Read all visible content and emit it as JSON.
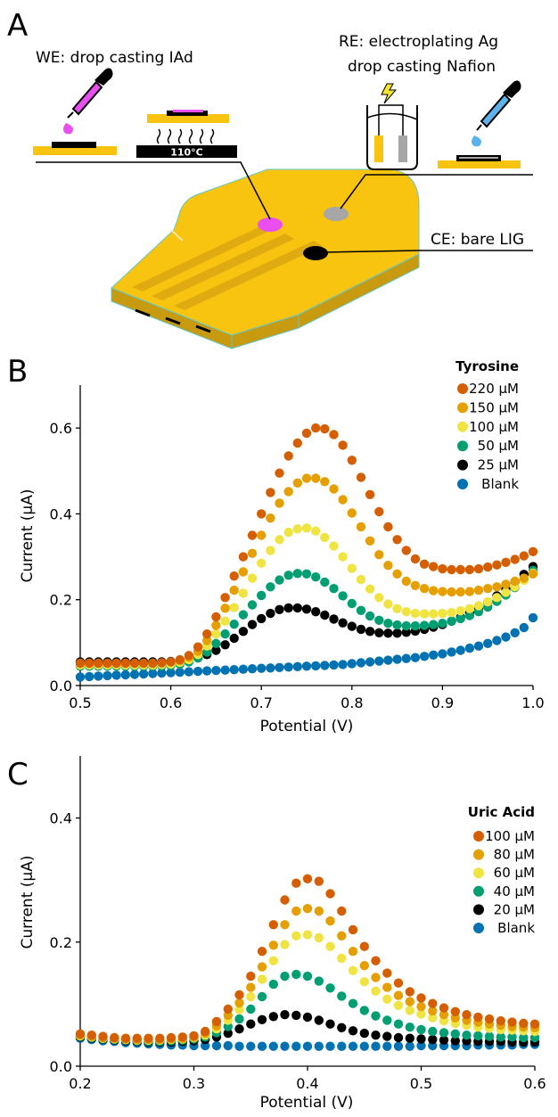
{
  "panels": {
    "a": "A",
    "b": "B",
    "c": "C"
  },
  "schematic": {
    "we_label": "WE: drop casting IAd",
    "re_label_line1": "RE: electroplating Ag",
    "re_label_line2": "drop casting Nafion",
    "ce_label": "CE: bare LIG",
    "temperature": "110°C",
    "icons": [
      "dropper-icon",
      "hot-plate-icon",
      "electroplating-cell-icon",
      "lightning-icon",
      "sensor-chip-icon"
    ],
    "colors": {
      "lig": "#f9c40f",
      "lig_dark": "#c89a10",
      "we_dot": "#e94ff0",
      "re_dot": "#a6a6a6",
      "ce_dot": "#000000",
      "nafion_drop": "#5cb3ec"
    }
  },
  "chart_data": [
    {
      "type": "scatter",
      "xlabel": "Potential (V)",
      "ylabel": "Current (μA)",
      "xlim": [
        0.5,
        1.0
      ],
      "ylim": [
        0.0,
        0.7
      ],
      "xticks": [
        "0.5",
        "0.6",
        "0.7",
        "0.8",
        "0.9",
        "1.0"
      ],
      "yticks": [
        "0.0",
        "0.2",
        "0.4",
        "0.6"
      ],
      "xtick_values": [
        0.5,
        0.6,
        0.7,
        0.8,
        0.9,
        1.0
      ],
      "ytick_values": [
        0.0,
        0.2,
        0.4,
        0.6
      ],
      "grid": false,
      "legend_title": "Tyrosine",
      "legend_position": "top-right",
      "series": [
        {
          "name": "220 μM",
          "color": "#d55e00",
          "x0": 0.5,
          "dx": 0.01,
          "values": [
            0.052,
            0.052,
            0.052,
            0.052,
            0.052,
            0.052,
            0.052,
            0.052,
            0.052,
            0.053,
            0.055,
            0.06,
            0.07,
            0.09,
            0.12,
            0.16,
            0.205,
            0.255,
            0.3,
            0.35,
            0.4,
            0.45,
            0.495,
            0.535,
            0.565,
            0.588,
            0.6,
            0.598,
            0.585,
            0.56,
            0.525,
            0.485,
            0.445,
            0.405,
            0.37,
            0.34,
            0.315,
            0.295,
            0.283,
            0.277,
            0.272,
            0.27,
            0.27,
            0.27,
            0.272,
            0.276,
            0.281,
            0.287,
            0.294,
            0.302,
            0.312
          ]
        },
        {
          "name": "150 μM",
          "color": "#e69f00",
          "x0": 0.5,
          "dx": 0.01,
          "values": [
            0.052,
            0.052,
            0.052,
            0.052,
            0.052,
            0.052,
            0.052,
            0.052,
            0.052,
            0.053,
            0.055,
            0.058,
            0.066,
            0.08,
            0.105,
            0.14,
            0.18,
            0.222,
            0.265,
            0.308,
            0.35,
            0.39,
            0.425,
            0.452,
            0.472,
            0.483,
            0.483,
            0.475,
            0.458,
            0.433,
            0.402,
            0.37,
            0.337,
            0.305,
            0.28,
            0.26,
            0.243,
            0.233,
            0.226,
            0.221,
            0.219,
            0.218,
            0.218,
            0.219,
            0.222,
            0.226,
            0.23,
            0.236,
            0.243,
            0.25,
            0.26
          ]
        },
        {
          "name": "100 μM",
          "color": "#f0e442",
          "x0": 0.5,
          "dx": 0.01,
          "values": [
            0.048,
            0.048,
            0.048,
            0.048,
            0.048,
            0.048,
            0.048,
            0.048,
            0.048,
            0.049,
            0.05,
            0.054,
            0.06,
            0.072,
            0.092,
            0.12,
            0.15,
            0.182,
            0.215,
            0.25,
            0.285,
            0.315,
            0.34,
            0.357,
            0.365,
            0.367,
            0.36,
            0.345,
            0.325,
            0.3,
            0.273,
            0.247,
            0.225,
            0.205,
            0.19,
            0.179,
            0.172,
            0.168,
            0.167,
            0.167,
            0.168,
            0.17,
            0.174,
            0.179,
            0.186,
            0.195,
            0.205,
            0.217,
            0.23,
            0.245,
            0.262
          ]
        },
        {
          "name": "50 μM",
          "color": "#009e73",
          "x0": 0.5,
          "dx": 0.01,
          "values": [
            0.045,
            0.045,
            0.045,
            0.045,
            0.045,
            0.045,
            0.045,
            0.045,
            0.045,
            0.046,
            0.047,
            0.05,
            0.055,
            0.064,
            0.078,
            0.098,
            0.12,
            0.143,
            0.165,
            0.188,
            0.21,
            0.23,
            0.246,
            0.257,
            0.261,
            0.26,
            0.253,
            0.241,
            0.226,
            0.209,
            0.191,
            0.175,
            0.162,
            0.152,
            0.145,
            0.141,
            0.139,
            0.139,
            0.14,
            0.142,
            0.145,
            0.15,
            0.156,
            0.163,
            0.172,
            0.183,
            0.196,
            0.211,
            0.228,
            0.246,
            0.268
          ]
        },
        {
          "name": "25 μM",
          "color": "#000000",
          "x0": 0.5,
          "dx": 0.01,
          "values": [
            0.055,
            0.055,
            0.055,
            0.055,
            0.055,
            0.055,
            0.055,
            0.055,
            0.055,
            0.055,
            0.056,
            0.057,
            0.06,
            0.065,
            0.072,
            0.082,
            0.095,
            0.11,
            0.126,
            0.142,
            0.156,
            0.168,
            0.177,
            0.181,
            0.181,
            0.178,
            0.172,
            0.164,
            0.155,
            0.146,
            0.138,
            0.131,
            0.126,
            0.123,
            0.122,
            0.122,
            0.124,
            0.127,
            0.131,
            0.136,
            0.142,
            0.15,
            0.159,
            0.169,
            0.181,
            0.194,
            0.209,
            0.225,
            0.242,
            0.259,
            0.277
          ]
        },
        {
          "name": "Blank",
          "color": "#0072b2",
          "x0": 0.5,
          "dx": 0.01,
          "values": [
            0.02,
            0.021,
            0.022,
            0.023,
            0.024,
            0.025,
            0.026,
            0.027,
            0.028,
            0.029,
            0.03,
            0.031,
            0.032,
            0.033,
            0.034,
            0.035,
            0.036,
            0.037,
            0.038,
            0.039,
            0.04,
            0.041,
            0.042,
            0.043,
            0.044,
            0.045,
            0.046,
            0.047,
            0.048,
            0.049,
            0.051,
            0.053,
            0.055,
            0.057,
            0.059,
            0.061,
            0.063,
            0.065,
            0.068,
            0.071,
            0.074,
            0.078,
            0.082,
            0.087,
            0.092,
            0.098,
            0.105,
            0.113,
            0.123,
            0.135,
            0.158
          ]
        }
      ]
    },
    {
      "type": "scatter",
      "xlabel": "Potential (V)",
      "ylabel": "Current (μA)",
      "xlim": [
        0.2,
        0.6
      ],
      "ylim": [
        0.0,
        0.5
      ],
      "xticks": [
        "0.2",
        "0.3",
        "0.4",
        "0.5",
        "0.6"
      ],
      "yticks": [
        "0.0",
        "0.2",
        "0.4"
      ],
      "xtick_values": [
        0.2,
        0.3,
        0.4,
        0.5,
        0.6
      ],
      "ytick_values": [
        0.0,
        0.2,
        0.4
      ],
      "grid": false,
      "legend_title": "Uric Acid",
      "legend_position": "right",
      "series": [
        {
          "name": "100 μM",
          "color": "#d55e00",
          "x0": 0.2,
          "dx": 0.01,
          "values": [
            0.052,
            0.05,
            0.048,
            0.046,
            0.045,
            0.045,
            0.045,
            0.045,
            0.046,
            0.047,
            0.049,
            0.056,
            0.072,
            0.092,
            0.115,
            0.145,
            0.185,
            0.228,
            0.268,
            0.295,
            0.302,
            0.298,
            0.278,
            0.25,
            0.22,
            0.193,
            0.17,
            0.15,
            0.134,
            0.12,
            0.11,
            0.101,
            0.094,
            0.088,
            0.083,
            0.079,
            0.076,
            0.073,
            0.071,
            0.069,
            0.068
          ]
        },
        {
          "name": "80 μM",
          "color": "#e69f00",
          "x0": 0.2,
          "dx": 0.01,
          "values": [
            0.05,
            0.048,
            0.046,
            0.045,
            0.044,
            0.043,
            0.043,
            0.043,
            0.044,
            0.045,
            0.047,
            0.053,
            0.065,
            0.082,
            0.102,
            0.127,
            0.16,
            0.195,
            0.228,
            0.25,
            0.254,
            0.25,
            0.234,
            0.21,
            0.185,
            0.162,
            0.143,
            0.127,
            0.114,
            0.104,
            0.096,
            0.089,
            0.083,
            0.078,
            0.074,
            0.071,
            0.068,
            0.066,
            0.064,
            0.063,
            0.062
          ]
        },
        {
          "name": "60 μM",
          "color": "#f0e442",
          "x0": 0.2,
          "dx": 0.01,
          "values": [
            0.049,
            0.047,
            0.045,
            0.044,
            0.043,
            0.042,
            0.042,
            0.042,
            0.043,
            0.044,
            0.046,
            0.05,
            0.06,
            0.074,
            0.091,
            0.112,
            0.14,
            0.17,
            0.196,
            0.21,
            0.212,
            0.207,
            0.193,
            0.174,
            0.154,
            0.136,
            0.121,
            0.108,
            0.098,
            0.09,
            0.084,
            0.078,
            0.073,
            0.069,
            0.066,
            0.063,
            0.061,
            0.059,
            0.058,
            0.057,
            0.056
          ]
        },
        {
          "name": "40 μM",
          "color": "#009e73",
          "x0": 0.2,
          "dx": 0.01,
          "values": [
            0.048,
            0.046,
            0.044,
            0.043,
            0.042,
            0.041,
            0.04,
            0.04,
            0.041,
            0.042,
            0.044,
            0.047,
            0.054,
            0.064,
            0.076,
            0.092,
            0.112,
            0.132,
            0.145,
            0.148,
            0.145,
            0.137,
            0.126,
            0.113,
            0.101,
            0.09,
            0.081,
            0.074,
            0.068,
            0.063,
            0.059,
            0.056,
            0.054,
            0.052,
            0.05,
            0.049,
            0.048,
            0.047,
            0.047,
            0.046,
            0.046
          ]
        },
        {
          "name": "20 μM",
          "color": "#000000",
          "x0": 0.2,
          "dx": 0.01,
          "values": [
            0.047,
            0.045,
            0.043,
            0.042,
            0.041,
            0.04,
            0.039,
            0.039,
            0.039,
            0.04,
            0.041,
            0.043,
            0.047,
            0.053,
            0.06,
            0.068,
            0.075,
            0.08,
            0.083,
            0.082,
            0.079,
            0.074,
            0.068,
            0.062,
            0.057,
            0.053,
            0.05,
            0.048,
            0.046,
            0.045,
            0.044,
            0.043,
            0.042,
            0.041,
            0.041,
            0.04,
            0.04,
            0.04,
            0.039,
            0.039,
            0.039
          ]
        },
        {
          "name": "Blank",
          "color": "#0072b2",
          "x0": 0.2,
          "dx": 0.01,
          "values": [
            0.045,
            0.043,
            0.041,
            0.04,
            0.038,
            0.037,
            0.036,
            0.035,
            0.034,
            0.034,
            0.033,
            0.033,
            0.033,
            0.033,
            0.032,
            0.032,
            0.032,
            0.032,
            0.032,
            0.032,
            0.032,
            0.032,
            0.032,
            0.032,
            0.032,
            0.032,
            0.032,
            0.032,
            0.032,
            0.032,
            0.033,
            0.033,
            0.033,
            0.033,
            0.033,
            0.034,
            0.034,
            0.034,
            0.034,
            0.035,
            0.035
          ]
        }
      ]
    }
  ]
}
